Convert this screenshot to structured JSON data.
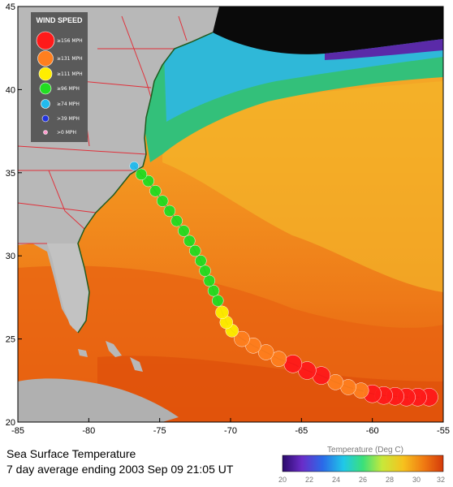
{
  "map": {
    "lon_range": [
      -85,
      -55
    ],
    "lat_range": [
      20,
      45
    ],
    "lon_ticks": [
      -85,
      -80,
      -75,
      -70,
      -65,
      -60,
      -55
    ],
    "lat_ticks": [
      20,
      25,
      30,
      35,
      40,
      45
    ],
    "lon_tick_labels": [
      "-85",
      "-80",
      "-75",
      "-70",
      "-65",
      "-60",
      "-55"
    ],
    "lat_tick_labels": [
      "20",
      "25",
      "30",
      "35",
      "40",
      "45"
    ]
  },
  "legend": {
    "title": "WIND SPEED",
    "items": [
      {
        "label": "≥156 MPH",
        "color": "#ff1a1a"
      },
      {
        "label": "≥131 MPH",
        "color": "#ff7f1e"
      },
      {
        "label": "≥111 MPH",
        "color": "#ffee00"
      },
      {
        "label": "≥96 MPH",
        "color": "#22dd22"
      },
      {
        "label": "≥74 MPH",
        "color": "#22bbee"
      },
      {
        "label": ">39 MPH",
        "color": "#2233dd"
      },
      {
        "label": ">0 MPH",
        "color": "#ff99cc"
      }
    ]
  },
  "track": {
    "points": [
      {
        "lon": -56.0,
        "lat": 21.5,
        "cat": 0
      },
      {
        "lon": -56.8,
        "lat": 21.5,
        "cat": 0
      },
      {
        "lon": -57.6,
        "lat": 21.5,
        "cat": 0
      },
      {
        "lon": -58.4,
        "lat": 21.55,
        "cat": 0
      },
      {
        "lon": -59.2,
        "lat": 21.6,
        "cat": 0
      },
      {
        "lon": -60.0,
        "lat": 21.7,
        "cat": 0
      },
      {
        "lon": -60.8,
        "lat": 21.9,
        "cat": 1
      },
      {
        "lon": -61.7,
        "lat": 22.1,
        "cat": 1
      },
      {
        "lon": -62.6,
        "lat": 22.4,
        "cat": 1
      },
      {
        "lon": -63.6,
        "lat": 22.8,
        "cat": 0
      },
      {
        "lon": -64.6,
        "lat": 23.1,
        "cat": 0
      },
      {
        "lon": -65.6,
        "lat": 23.5,
        "cat": 0
      },
      {
        "lon": -66.6,
        "lat": 23.8,
        "cat": 1
      },
      {
        "lon": -67.5,
        "lat": 24.2,
        "cat": 1
      },
      {
        "lon": -68.4,
        "lat": 24.6,
        "cat": 1
      },
      {
        "lon": -69.2,
        "lat": 25.0,
        "cat": 1
      },
      {
        "lon": -69.9,
        "lat": 25.5,
        "cat": 2
      },
      {
        "lon": -70.3,
        "lat": 26.0,
        "cat": 2
      },
      {
        "lon": -70.6,
        "lat": 26.6,
        "cat": 2
      },
      {
        "lon": -70.9,
        "lat": 27.3,
        "cat": 3
      },
      {
        "lon": -71.2,
        "lat": 27.9,
        "cat": 3
      },
      {
        "lon": -71.5,
        "lat": 28.5,
        "cat": 3
      },
      {
        "lon": -71.8,
        "lat": 29.1,
        "cat": 3
      },
      {
        "lon": -72.1,
        "lat": 29.7,
        "cat": 3
      },
      {
        "lon": -72.5,
        "lat": 30.3,
        "cat": 3
      },
      {
        "lon": -72.9,
        "lat": 30.9,
        "cat": 3
      },
      {
        "lon": -73.3,
        "lat": 31.5,
        "cat": 3
      },
      {
        "lon": -73.8,
        "lat": 32.1,
        "cat": 3
      },
      {
        "lon": -74.3,
        "lat": 32.7,
        "cat": 3
      },
      {
        "lon": -74.8,
        "lat": 33.3,
        "cat": 3
      },
      {
        "lon": -75.3,
        "lat": 33.9,
        "cat": 3
      },
      {
        "lon": -75.8,
        "lat": 34.5,
        "cat": 3
      },
      {
        "lon": -76.3,
        "lat": 34.9,
        "cat": 3
      },
      {
        "lon": -76.8,
        "lat": 35.4,
        "cat": 4
      }
    ]
  },
  "colors": {
    "ocean_warm": "#e2560c",
    "ocean_mid": "#f6921e",
    "land": "#b8b8b8",
    "shelf_cool": "#2fb8d8",
    "deep_cold": "#0a0a0a",
    "border_red": "#e0303a"
  },
  "colorbar": {
    "title": "Temperature (Deg C)",
    "ticks": [
      "20",
      "22",
      "24",
      "26",
      "28",
      "30",
      "32"
    ]
  },
  "caption": {
    "line1": "Sea Surface Temperature",
    "line2": "7 day average ending 2003 Sep 09 21:05 UT"
  }
}
